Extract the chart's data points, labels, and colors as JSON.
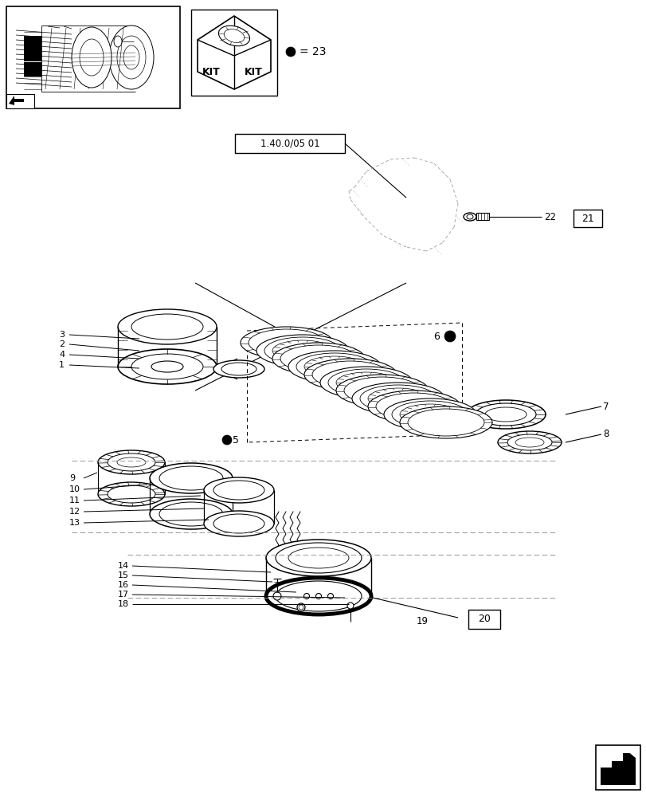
{
  "bg_color": "#ffffff",
  "lc": "#000000",
  "gray": "#888888",
  "fig_width": 8.12,
  "fig_height": 10.0,
  "dpi": 100,
  "ref_label": "1.40.0/05 01",
  "kit_text": "KIT  KIT",
  "bullet_label": "= 23"
}
